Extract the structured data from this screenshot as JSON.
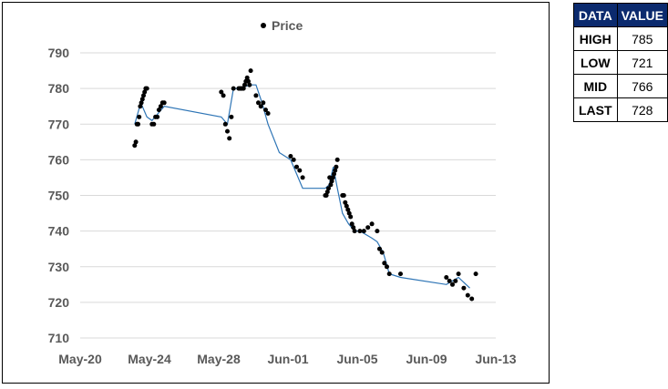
{
  "chart_data": {
    "type": "scatter",
    "series": [
      {
        "name": "Price",
        "kind": "scatter",
        "x": [
          "2016-05-23",
          "2016-05-23",
          "2016-05-23",
          "2016-05-23",
          "2016-05-23",
          "2016-05-23",
          "2016-05-23",
          "2016-05-23",
          "2016-05-23",
          "2016-05-23",
          "2016-05-23",
          "2016-05-23",
          "2016-05-24",
          "2016-05-24",
          "2016-05-24",
          "2016-05-24",
          "2016-05-24",
          "2016-05-24",
          "2016-05-24",
          "2016-05-24",
          "2016-05-28",
          "2016-05-28",
          "2016-05-28",
          "2016-05-28",
          "2016-05-28",
          "2016-05-28",
          "2016-05-28",
          "2016-05-29",
          "2016-05-29",
          "2016-05-29",
          "2016-05-29",
          "2016-05-29",
          "2016-05-29",
          "2016-05-29",
          "2016-05-29",
          "2016-05-29",
          "2016-05-29",
          "2016-05-29",
          "2016-05-30",
          "2016-05-30",
          "2016-05-30",
          "2016-05-30",
          "2016-05-30",
          "2016-05-30",
          "2016-06-01",
          "2016-06-01",
          "2016-06-01",
          "2016-06-01",
          "2016-06-01",
          "2016-06-03",
          "2016-06-03",
          "2016-06-03",
          "2016-06-03",
          "2016-06-03",
          "2016-06-03",
          "2016-06-03",
          "2016-06-03",
          "2016-06-03",
          "2016-06-03",
          "2016-06-03",
          "2016-06-03",
          "2016-06-04",
          "2016-06-04",
          "2016-06-04",
          "2016-06-04",
          "2016-06-04",
          "2016-06-04",
          "2016-06-04",
          "2016-06-04",
          "2016-06-04",
          "2016-06-04",
          "2016-06-05",
          "2016-06-05",
          "2016-06-05",
          "2016-06-05",
          "2016-06-06",
          "2016-06-06",
          "2016-06-06",
          "2016-06-06",
          "2016-06-06",
          "2016-06-06",
          "2016-06-07",
          "2016-06-10",
          "2016-06-10",
          "2016-06-10",
          "2016-06-10",
          "2016-06-10",
          "2016-06-11",
          "2016-06-11",
          "2016-06-11",
          "2016-06-11"
        ],
        "y": [
          764,
          765,
          770,
          770,
          772,
          775,
          776,
          777,
          778,
          779,
          780,
          780,
          770,
          770,
          772,
          772,
          774,
          775,
          776,
          776,
          779,
          778,
          770,
          768,
          766,
          772,
          780,
          780,
          780,
          780,
          780,
          780,
          781,
          782,
          783,
          782,
          781,
          785,
          778,
          776,
          775,
          776,
          774,
          773,
          761,
          760,
          758,
          757,
          755,
          750,
          750,
          751,
          752,
          755,
          753,
          754,
          755,
          756,
          757,
          758,
          760,
          750,
          750,
          748,
          747,
          746,
          745,
          744,
          742,
          741,
          740,
          740,
          740,
          741,
          742,
          740,
          735,
          734,
          731,
          730,
          728,
          728,
          727,
          726,
          725,
          726,
          728,
          724,
          722,
          721,
          728
        ]
      },
      {
        "name": "",
        "kind": "line",
        "x": [
          "2016-05-23",
          "2016-05-23",
          "2016-05-23",
          "2016-05-24",
          "2016-05-24",
          "2016-05-28",
          "2016-05-28",
          "2016-05-28",
          "2016-05-29",
          "2016-05-29",
          "2016-05-30",
          "2016-05-30",
          "2016-05-30",
          "2016-05-31",
          "2016-06-01",
          "2016-06-01",
          "2016-06-01",
          "2016-06-03",
          "2016-06-03",
          "2016-06-03",
          "2016-06-03",
          "2016-06-04",
          "2016-06-04",
          "2016-06-04",
          "2016-06-05",
          "2016-06-05",
          "2016-06-06",
          "2016-06-06",
          "2016-06-06",
          "2016-06-07",
          "2016-06-10",
          "2016-06-10",
          "2016-06-11"
        ],
        "y": [
          770,
          776,
          772,
          771,
          775,
          772,
          770,
          780,
          780,
          781,
          781,
          776,
          770,
          762,
          760,
          756,
          752,
          752,
          753,
          758,
          752,
          745,
          742,
          740,
          740,
          738,
          737,
          734,
          728,
          727,
          725,
          727,
          724
        ]
      }
    ],
    "xlim": [
      "2016-05-20",
      "2016-06-13"
    ],
    "ylim": [
      710,
      790
    ],
    "x_ticks": [
      "May-20",
      "May-24",
      "May-28",
      "Jun-01",
      "Jun-05",
      "Jun-09",
      "Jun-13"
    ],
    "y_ticks": [
      710,
      720,
      730,
      740,
      750,
      760,
      770,
      780,
      790
    ],
    "grid": true,
    "legend_position": "top"
  },
  "legend": {
    "label": "Price"
  },
  "table": {
    "headers": [
      "DATA",
      "VALUE"
    ],
    "rows": [
      {
        "key": "HIGH",
        "value": "785"
      },
      {
        "key": "LOW",
        "value": "721"
      },
      {
        "key": "MID",
        "value": "766"
      },
      {
        "key": "LAST",
        "value": "728"
      }
    ]
  },
  "colors": {
    "point": "#000000",
    "line": "#2E75B6",
    "grid": "#D9D9D9",
    "table_header_bg": "#0B2A6E",
    "text": "#595959"
  }
}
